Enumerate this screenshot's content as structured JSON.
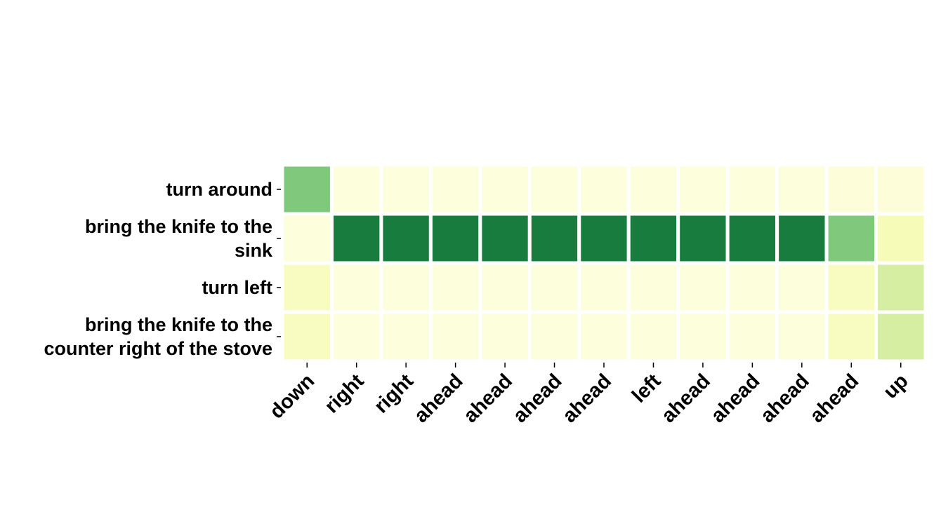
{
  "chart_data": {
    "type": "heatmap",
    "title": "",
    "xlabel": "",
    "ylabel": "",
    "rows": [
      "turn around",
      "bring the knife to the sink",
      "turn left",
      "bring the knife to the counter right of the stove"
    ],
    "row_label_lines": [
      [
        "turn around"
      ],
      [
        "bring the knife to the",
        "sink"
      ],
      [
        "turn left"
      ],
      [
        "bring the knife to the",
        "counter right of the stove"
      ]
    ],
    "columns": [
      "down",
      "right",
      "right",
      "ahead",
      "ahead",
      "ahead",
      "ahead",
      "left",
      "ahead",
      "ahead",
      "ahead",
      "ahead",
      "up"
    ],
    "values": [
      [
        0.55,
        0.03,
        0.03,
        0.03,
        0.03,
        0.03,
        0.03,
        0.03,
        0.03,
        0.03,
        0.03,
        0.04,
        0.04
      ],
      [
        0.03,
        0.9,
        0.9,
        0.9,
        0.9,
        0.9,
        0.9,
        0.9,
        0.9,
        0.9,
        0.9,
        0.55,
        0.15
      ],
      [
        0.12,
        0.03,
        0.03,
        0.03,
        0.03,
        0.03,
        0.03,
        0.03,
        0.03,
        0.03,
        0.03,
        0.12,
        0.3
      ],
      [
        0.12,
        0.03,
        0.03,
        0.03,
        0.03,
        0.03,
        0.03,
        0.03,
        0.03,
        0.03,
        0.03,
        0.12,
        0.3
      ]
    ],
    "colormap": [
      "#ffffe5",
      "#f7fcb9",
      "#d9f0a3",
      "#addd8e",
      "#78c679",
      "#41ab5d",
      "#238443",
      "#006837"
    ],
    "value_range": [
      0,
      1
    ],
    "grid": false,
    "legend": "none"
  }
}
